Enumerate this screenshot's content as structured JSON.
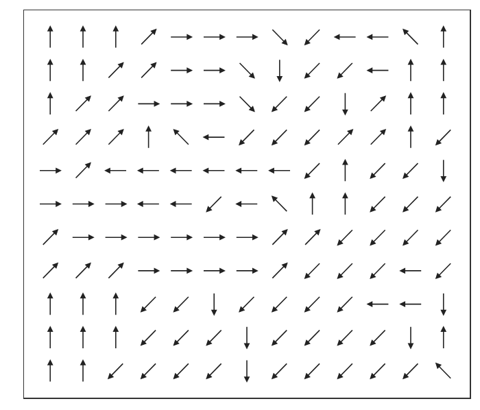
{
  "chart_data": {
    "type": "quiver",
    "color": "#222222",
    "grid": false,
    "tick_labels": false,
    "xlim": [
      -0.8,
      12.8
    ],
    "ylim": [
      -0.8,
      10.8
    ],
    "x": [
      0,
      1,
      2,
      3,
      4,
      5,
      6,
      7,
      8,
      9,
      10,
      11,
      12,
      0,
      1,
      2,
      3,
      4,
      5,
      6,
      7,
      8,
      9,
      10,
      11,
      12,
      0,
      1,
      2,
      3,
      4,
      5,
      6,
      7,
      8,
      9,
      10,
      11,
      12,
      0,
      1,
      2,
      3,
      4,
      5,
      6,
      7,
      8,
      9,
      10,
      11,
      12,
      0,
      1,
      2,
      3,
      4,
      5,
      6,
      7,
      8,
      9,
      10,
      11,
      12,
      0,
      1,
      2,
      3,
      4,
      5,
      6,
      7,
      8,
      9,
      10,
      11,
      12,
      0,
      1,
      2,
      3,
      4,
      5,
      6,
      7,
      8,
      9,
      10,
      11,
      12,
      0,
      1,
      2,
      3,
      4,
      5,
      6,
      7,
      8,
      9,
      10,
      11,
      12,
      0,
      1,
      2,
      3,
      4,
      5,
      6,
      7,
      8,
      9,
      10,
      11,
      12,
      0,
      1,
      2,
      3,
      4,
      5,
      6,
      7,
      8,
      9,
      10,
      11,
      12,
      0,
      1,
      2,
      3,
      4,
      5,
      6,
      7,
      8,
      9,
      10,
      11,
      12
    ],
    "y": [
      10,
      10,
      10,
      10,
      10,
      10,
      10,
      10,
      10,
      10,
      10,
      10,
      10,
      9,
      9,
      9,
      9,
      9,
      9,
      9,
      9,
      9,
      9,
      9,
      9,
      9,
      8,
      8,
      8,
      8,
      8,
      8,
      8,
      8,
      8,
      8,
      8,
      8,
      8,
      7,
      7,
      7,
      7,
      7,
      7,
      7,
      7,
      7,
      7,
      7,
      7,
      7,
      6,
      6,
      6,
      6,
      6,
      6,
      6,
      6,
      6,
      6,
      6,
      6,
      6,
      5,
      5,
      5,
      5,
      5,
      5,
      5,
      5,
      5,
      5,
      5,
      5,
      5,
      4,
      4,
      4,
      4,
      4,
      4,
      4,
      4,
      4,
      4,
      4,
      4,
      4,
      3,
      3,
      3,
      3,
      3,
      3,
      3,
      3,
      3,
      3,
      3,
      3,
      3,
      2,
      2,
      2,
      2,
      2,
      2,
      2,
      2,
      2,
      2,
      2,
      2,
      2,
      1,
      1,
      1,
      1,
      1,
      1,
      1,
      1,
      1,
      1,
      1,
      1,
      1,
      0,
      0,
      0,
      0,
      0,
      0,
      0,
      0,
      0,
      0,
      0,
      0,
      0
    ],
    "u": [
      0,
      0,
      0,
      0.5,
      0.7,
      0.7,
      0.7,
      0.5,
      -0.5,
      -0.7,
      -0.7,
      -0.5,
      0,
      0,
      0,
      0.5,
      0.5,
      0.7,
      0.7,
      0.5,
      0,
      -0.5,
      -0.5,
      -0.7,
      0,
      0,
      0,
      0.5,
      0.5,
      0.7,
      0.7,
      0.7,
      0.5,
      -0.5,
      -0.5,
      0,
      0.5,
      0,
      0,
      0.5,
      0.5,
      0.5,
      0,
      -0.5,
      -0.7,
      -0.5,
      -0.5,
      -0.5,
      0.5,
      0.5,
      0,
      -0.5,
      0.7,
      0.5,
      -0.7,
      -0.7,
      -0.7,
      -0.7,
      -0.7,
      -0.7,
      -0.5,
      0,
      -0.5,
      -0.5,
      0,
      0.7,
      0.7,
      0.7,
      -0.7,
      -0.7,
      -0.5,
      -0.7,
      -0.5,
      0,
      0,
      -0.5,
      -0.5,
      -0.5,
      0.5,
      0.7,
      0.7,
      0.7,
      0.7,
      0.7,
      0.7,
      0.5,
      0.5,
      -0.5,
      -0.5,
      -0.5,
      -0.5,
      0.5,
      0.5,
      0.5,
      0.7,
      0.7,
      0.7,
      0.7,
      0.5,
      -0.5,
      -0.5,
      -0.5,
      -0.7,
      -0.5,
      0,
      0,
      0,
      -0.5,
      -0.5,
      0,
      -0.5,
      -0.5,
      -0.5,
      -0.5,
      -0.7,
      -0.7,
      0,
      0,
      0,
      0,
      -0.5,
      -0.5,
      -0.5,
      0,
      -0.5,
      -0.5,
      -0.5,
      -0.5,
      0,
      0,
      0,
      0,
      -0.5,
      -0.5,
      -0.5,
      -0.5,
      0,
      -0.5,
      -0.5,
      -0.5,
      -0.5,
      -0.5,
      -0.5
    ],
    "v": [
      0.7,
      0.7,
      0.7,
      0.5,
      0,
      0,
      0,
      -0.5,
      -0.5,
      0,
      0,
      0.5,
      0.7,
      0.7,
      0.7,
      0.5,
      0.5,
      0,
      0,
      -0.5,
      -0.7,
      -0.5,
      -0.5,
      0,
      0.7,
      0.7,
      0.7,
      0.5,
      0.5,
      0,
      0,
      0,
      -0.5,
      -0.5,
      -0.5,
      -0.7,
      0.5,
      0.7,
      0.7,
      0.5,
      0.5,
      0.5,
      0.7,
      0.5,
      0,
      -0.5,
      -0.5,
      -0.5,
      0.5,
      0.5,
      0.7,
      -0.5,
      0,
      0.5,
      0,
      0,
      0,
      0,
      0,
      0,
      -0.5,
      0.7,
      -0.5,
      -0.5,
      -0.7,
      0,
      0,
      0,
      0,
      0,
      -0.5,
      0,
      0.5,
      0.7,
      0.7,
      -0.5,
      -0.5,
      -0.5,
      0.5,
      0,
      0,
      0,
      0,
      0,
      0,
      0.5,
      0.5,
      -0.5,
      -0.5,
      -0.5,
      -0.5,
      0.5,
      0.5,
      0.5,
      0,
      0,
      0,
      0,
      0.5,
      -0.5,
      -0.5,
      -0.5,
      0,
      -0.5,
      0.7,
      0.7,
      0.7,
      -0.5,
      -0.5,
      -0.7,
      -0.5,
      -0.5,
      -0.5,
      -0.5,
      0,
      0,
      -0.7,
      0.7,
      0.7,
      0.7,
      -0.5,
      -0.5,
      -0.5,
      -0.7,
      -0.5,
      -0.5,
      -0.5,
      -0.5,
      -0.7,
      0.7,
      0.7,
      0.7,
      -0.5,
      -0.5,
      -0.5,
      -0.5,
      -0.7,
      -0.5,
      -0.5,
      -0.5,
      -0.5,
      -0.5,
      0.5
    ]
  }
}
